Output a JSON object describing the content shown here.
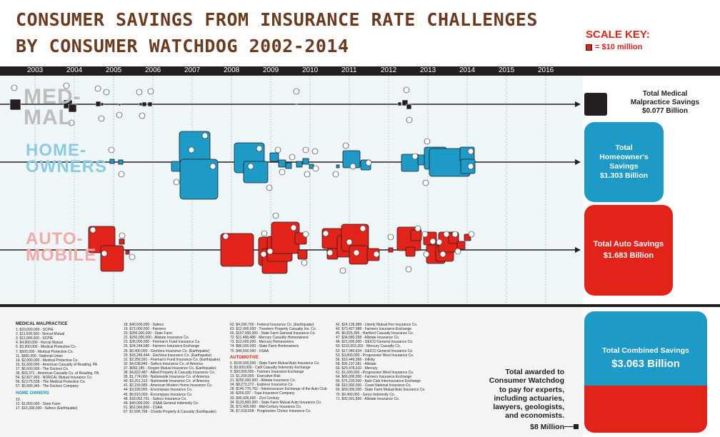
{
  "title": {
    "line1": "CONSUMER SAVINGS FROM INSURANCE RATE CHALLENGES",
    "line2": "BY CONSUMER WATCHDOG 2002-2014"
  },
  "scale_key": {
    "title": "SCALE KEY:",
    "label": "= $10 million"
  },
  "years": [
    "2003",
    "2004",
    "2005",
    "2006",
    "2007",
    "2008",
    "2009",
    "2010",
    "2011",
    "2012",
    "2013",
    "2014",
    "2015",
    "2016"
  ],
  "categories": {
    "medical_label": "MED-\nMAL",
    "home_label": "HOME-\nOWNERS",
    "auto_label": "AUTO-\nMOBILE"
  },
  "totals": {
    "medical": "Total Medical Malpractice Savings $0.077 Billion",
    "medical_line1": "Total Medical",
    "medical_line2": "Malpractice Savings",
    "medical_line3": "$0.077 Billion",
    "home_line1": "Total",
    "home_line2": "Homeowner's",
    "home_line3": "Savings",
    "home_line4": "$1.303 Billion",
    "auto_line1": "Total Auto Savings",
    "auto_line2": "$1.683 Billion",
    "combined_label": "Total Combined Savings",
    "combined_value": "$3.063 Billion"
  },
  "awarded": {
    "line1": "Total awarded to",
    "line2": "Consumer Watchdog",
    "line3": "to pay for experts,",
    "line4": "including actuaries,",
    "line5": "lawyers, geologists,",
    "line6": "and economists.",
    "value": "$8 Million"
  },
  "colors": {
    "medical": "#231f20",
    "home": "#1d9ac6",
    "auto": "#e2231a",
    "title": "#6b3a1f"
  },
  "lists": {
    "medical_head": "MEDICAL MALPRACTICE",
    "medical_items": [
      "1. $23,000,000 - SCPIE",
      "2. $11,600,000 - Norcal Mutual",
      "3. $11,000,000 - SCPIE",
      "4. $4,900,000 - Norcal Mutual",
      "6. $3,900,000 - Medical Protective Co.",
      "7. $500,000 - Medical Protective Co.",
      "11. $900,000 - National Union",
      "14. $2,000,000 - Medical Protective Co.",
      "15. $1,600,000 - American Casualty of Reading, PA",
      "17. $6,600,000 - The Doctors Co.",
      "36. $53,371 - American Casualty Co. of Reading, PA",
      "54. $2,827,993 - NORCAL Mutual Insurance Co.",
      "56. $2,575,538 - The Medical Protective Co.",
      "57. $5,689,346 - The Doctors Company"
    ],
    "home_head": "HOME OWNERS",
    "home_items": [
      "10.",
      "12. $1,800,000 - State Farm",
      "17. $19,300,000 - Safeco (Earthquake)"
    ],
    "col2_items": [
      "18. $40,500,000 - Safeco",
      "19. $73,000,000 - Farmers",
      "20. $266,000,000 - State Farm",
      "22. $250,000,000 - Allstate Insurance Co.",
      "23. $35,000,000 - Fireman's Fund Insurance Co.",
      "25. $24,244,585 - Farmers Insurance Exchange",
      "26. $6,400,000 - GeoVera Insurance Co. (Earthquake)",
      "29. $18,245,444 - GeoVera Insurance Co. (Earthquake)",
      "31. $2,256,591 - Fireman's Fund Insurance Co. (Earthquake)",
      "32. $4,638,846 - Safeco Insurance Co. of America",
      "37. $660,185 - Oregon Mutual Insurance Co. (Earthquake)",
      "38. $4,822,487 - Allied Property & Casualty Insurance Co.",
      "39. $1,774,000 - Nationwide Insurance Co. of America",
      "40. $3,251,313 - Nationwide Insurance Co. of America",
      "41. $2,159,585 - American Modern Home Insurance Co.",
      "44. $3,939,000 - Encompass Insurance Co.",
      "46. $6,810,000 - Encompass Insurance Co.",
      "48. $18,062,701 - Safeco Insurance Co.",
      "49. $40,000,000 - USAA General Indemnity Co.",
      "51. $52,066,800 - CSAA",
      "67. $7,696,768 - Chartis Property & Casualty (Earthquake)"
    ],
    "col3_items": [
      "62. $4,290,706 - Federal Insurance Co. (Earthquake)",
      "63. $12,000,000 - Travelers Property Casualty Ins. Co.",
      "65. $157,000,000 - State Farm General Insurance Co.",
      "72. $11,468,488 - Mercury Casualty Homeowners",
      "73. $12,000,000 - Mercury Homeowners",
      "74. $86,000,000 - State Farm Homeowners",
      "75. $40,500,000 - USAA"
    ],
    "auto_head": "AUTOMOTIVE",
    "auto_items": [
      "5. $100,000,000 - State Farm Mutual Auto Insurance Co.",
      "8. $9,600,000 - Calif Casualty Indemnity Exchange",
      "9. $93,900,000 - Farmers Insurance Exchange",
      "13. $1,200,000 - Executive Risk",
      "21. $250,000,000 - Allstate Insurance Co.",
      "24. $8,273,272 - Explorer Insurance Co.",
      "28. $140,776,762 - Interinsurance Exchange of the Auto Club",
      "30. $259,037 - Topa Insurance Company",
      "33. $95,926,665 - 21st Century",
      "34. $133,800,000 - State Farm Mutual Auto Insurance Co.",
      "35. $72,400,000 - Mid-Century Insurance Co.",
      "36. $7,018,608 - Progressive Choice Insurance Co."
    ],
    "col4_items": [
      "42. $24,136,989 - Liberty Mutual Fire Insurance Co.",
      "43. $73,427,988 - Farmers Insurance Exchange",
      "45. $6,825,395 - Hartford Casualty Insurance Co.",
      "47. $34,680,258 - Allstate Insurance Co.",
      "48. $21,000,000 - GEICO General Insurance Co.",
      "50. $115,003,263 - Mercury Casualty Co.",
      "52. $17,946,624 - GEICO General Insurance Co.",
      "53. $3,800,000 - Progressive West Insurance Co.",
      "56. $10,446,368 - Infinity",
      "58. $95,197,381 - Allstate",
      "60. $29,478,310 - Mercury",
      "61. $1,690,000 - Progressive West Insurance Co.",
      "64. $66,000,000 - Farmers Insurance Exchange",
      "66. $75,230,000 - Auto Club Interinsurance Exchange",
      "68. $10,900,000 - Coast National Insurance Co.",
      "69. $69,000,000 - State Farm Mutual Auto Insurance Co.",
      "70. $9,400,000 - Geico Indemnity Co.",
      "71. $92,991,856 - Allstate Insurance Co."
    ]
  }
}
